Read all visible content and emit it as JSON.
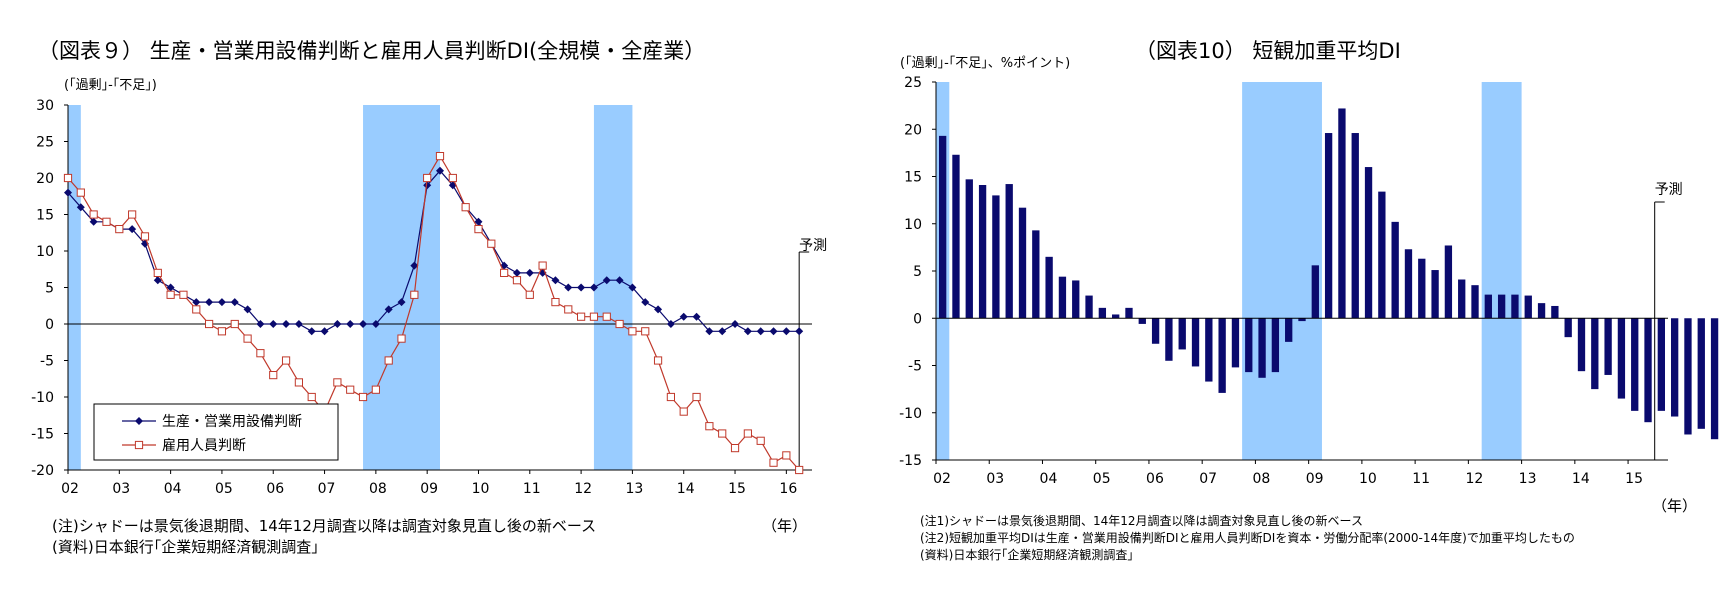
{
  "chart_data": [
    {
      "type": "line",
      "title": "（図表９） 生産・営業用設備判断と雇用人員判断DI(全規模・全産業）",
      "ylabel": "(｢過剰｣-｢不足｣)",
      "xlabel": "（年）",
      "ylim": [
        -20,
        30
      ],
      "yticks": [
        "30",
        "25",
        "20",
        "15",
        "10",
        "5",
        "0",
        "-5",
        "-10",
        "-15",
        "-20"
      ],
      "xticks": [
        "02",
        "03",
        "04",
        "05",
        "06",
        "07",
        "08",
        "09",
        "10",
        "11",
        "12",
        "13",
        "14",
        "15",
        "16"
      ],
      "x_range": [
        2002,
        2016.5
      ],
      "shaded_periods": [
        [
          2002.0,
          2002.25
        ],
        [
          2007.75,
          2009.25
        ],
        [
          2012.25,
          2013.0
        ]
      ],
      "forecast_label": "予測",
      "forecast_x": 2016.25,
      "legend_position": "bottom-left",
      "series": [
        {
          "name": "生産・営業用設備判断",
          "color": "#0a0a6e",
          "marker": "diamond",
          "values": [
            18,
            16,
            14,
            14,
            13,
            13,
            11,
            6,
            5,
            4,
            3,
            3,
            3,
            3,
            2,
            0,
            0,
            0,
            0,
            -1,
            -1,
            0,
            0,
            0,
            0,
            2,
            3,
            8,
            19,
            21,
            19,
            16,
            14,
            11,
            8,
            7,
            7,
            7,
            6,
            5,
            5,
            5,
            6,
            6,
            5,
            3,
            2,
            0,
            1,
            1,
            -1,
            -1,
            0,
            -1,
            -1,
            -1,
            -1,
            -1
          ]
        },
        {
          "name": "雇用人員判断",
          "color": "#c0392b",
          "marker": "square-open",
          "values": [
            20,
            18,
            15,
            14,
            13,
            15,
            12,
            7,
            4,
            4,
            2,
            0,
            -1,
            0,
            -2,
            -4,
            -7,
            -5,
            -8,
            -10,
            -12,
            -8,
            -9,
            -10,
            -9,
            -5,
            -2,
            4,
            20,
            23,
            20,
            16,
            13,
            11,
            7,
            6,
            4,
            8,
            3,
            2,
            1,
            1,
            1,
            0,
            -1,
            -1,
            -5,
            -10,
            -12,
            -10,
            -14,
            -15,
            -17,
            -15,
            -16,
            -19,
            -18,
            -20
          ]
        }
      ]
    },
    {
      "type": "bar",
      "title": "（図表10） 短観加重平均DI",
      "ylabel": "(｢過剰｣-｢不足｣、%ポイント)",
      "xlabel": "（年）",
      "ylim": [
        -15,
        25
      ],
      "yticks": [
        "25",
        "20",
        "15",
        "10",
        "5",
        "0",
        "-5",
        "-10",
        "-15"
      ],
      "xticks": [
        "02",
        "03",
        "04",
        "05",
        "06",
        "07",
        "08",
        "09",
        "10",
        "11",
        "12",
        "13",
        "14",
        "15"
      ],
      "x_range": [
        2002,
        2015.75
      ],
      "shaded_periods": [
        [
          2002.0,
          2002.25
        ],
        [
          2007.75,
          2009.25
        ],
        [
          2012.25,
          2013.0
        ]
      ],
      "forecast_label": "予測",
      "forecast_x": 2015.5,
      "bar_color": "#0a0a6e",
      "series": [
        {
          "name": "短観加重平均DI",
          "values": [
            19.3,
            17.3,
            14.7,
            14.1,
            13.0,
            14.2,
            11.7,
            9.3,
            6.5,
            4.4,
            4.0,
            2.4,
            1.1,
            0.4,
            1.1,
            -0.6,
            -2.7,
            -4.5,
            -3.3,
            -5.1,
            -6.7,
            -7.9,
            -5.2,
            -5.7,
            -6.3,
            -5.7,
            -2.5,
            -0.3,
            5.6,
            19.6,
            22.2,
            19.6,
            16.0,
            13.4,
            10.2,
            7.3,
            6.3,
            5.1,
            7.7,
            4.1,
            3.5,
            2.5,
            2.5,
            2.5,
            2.4,
            1.6,
            1.3,
            -2.0,
            -5.6,
            -7.5,
            -6.0,
            -8.5,
            -9.8,
            -11.0,
            -9.8,
            -10.4,
            -12.3,
            -11.7,
            -12.8
          ]
        }
      ]
    }
  ],
  "notes": {
    "left": [
      "(注)シャドーは景気後退期間、14年12月調査以降は調査対象見直し後の新ベース",
      "(資料)日本銀行｢企業短期経済観測調査｣"
    ],
    "right": [
      "(注1)シャドーは景気後退期間、14年12月調査以降は調査対象見直し後の新ベース",
      "(注2)短観加重平均DIは生産・営業用設備判断DIと雇用人員判断DIを資本・労働分配率(2000-14年度)で加重平均したもの",
      "(資料)日本銀行｢企業短期経済観測調査｣"
    ]
  }
}
